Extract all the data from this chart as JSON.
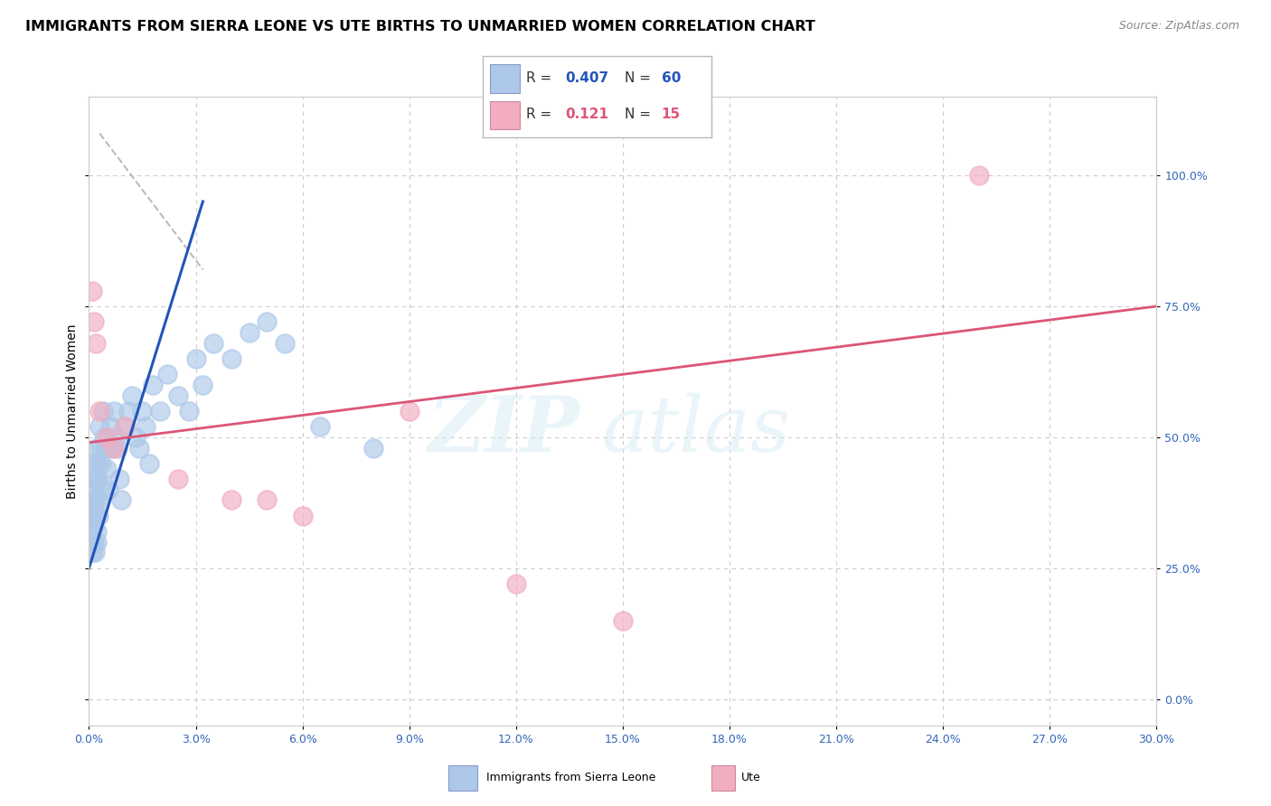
{
  "title": "IMMIGRANTS FROM SIERRA LEONE VS UTE BIRTHS TO UNMARRIED WOMEN CORRELATION CHART",
  "source": "Source: ZipAtlas.com",
  "ylabel": "Births to Unmarried Women",
  "xlim": [
    0.0,
    30.0
  ],
  "ylim": [
    -5.0,
    115.0
  ],
  "ytick_vals": [
    0,
    25,
    50,
    75,
    100
  ],
  "ytick_labels": [
    "0.0%",
    "25.0%",
    "50.0%",
    "75.0%",
    "100.0%"
  ],
  "xtick_vals": [
    0,
    3,
    6,
    9,
    12,
    15,
    18,
    21,
    24,
    27,
    30
  ],
  "xtick_labels": [
    "0.0%",
    "3.0%",
    "6.0%",
    "9.0%",
    "12.0%",
    "15.0%",
    "18.0%",
    "21.0%",
    "24.0%",
    "27.0%",
    "30.0%"
  ],
  "blue_color": "#adc8e8",
  "pink_color": "#f2adc0",
  "blue_line_color": "#2255bb",
  "pink_line_color": "#dd5577",
  "legend_r1": "0.407",
  "legend_n1": "60",
  "legend_r2": "0.121",
  "legend_n2": "15",
  "blue_x": [
    0.05,
    0.07,
    0.08,
    0.09,
    0.1,
    0.11,
    0.12,
    0.13,
    0.14,
    0.15,
    0.16,
    0.17,
    0.18,
    0.19,
    0.2,
    0.21,
    0.22,
    0.23,
    0.24,
    0.25,
    0.26,
    0.28,
    0.3,
    0.32,
    0.35,
    0.38,
    0.4,
    0.43,
    0.46,
    0.5,
    0.55,
    0.6,
    0.65,
    0.7,
    0.75,
    0.8,
    0.85,
    0.9,
    1.0,
    1.1,
    1.2,
    1.3,
    1.4,
    1.5,
    1.6,
    1.7,
    1.8,
    2.0,
    2.2,
    2.5,
    2.8,
    3.0,
    3.2,
    3.5,
    4.0,
    4.5,
    5.0,
    5.5,
    6.5,
    8.0
  ],
  "blue_y": [
    35,
    32,
    30,
    28,
    38,
    42,
    40,
    36,
    33,
    30,
    28,
    45,
    42,
    38,
    35,
    32,
    30,
    48,
    45,
    42,
    38,
    35,
    52,
    48,
    45,
    40,
    55,
    50,
    48,
    44,
    40,
    52,
    48,
    55,
    50,
    48,
    42,
    38,
    52,
    55,
    58,
    50,
    48,
    55,
    52,
    45,
    60,
    55,
    62,
    58,
    55,
    65,
    60,
    68,
    65,
    70,
    72,
    68,
    52,
    48
  ],
  "pink_x": [
    0.1,
    0.15,
    0.2,
    0.3,
    0.5,
    0.7,
    1.0,
    2.5,
    5.0,
    6.0,
    9.0,
    15.0,
    25.0,
    4.0,
    12.0
  ],
  "pink_y": [
    78,
    72,
    68,
    55,
    50,
    48,
    52,
    42,
    38,
    35,
    55,
    15,
    100,
    38,
    22
  ],
  "blue_trend_x0": 0.0,
  "blue_trend_y0": 25.0,
  "blue_trend_x1": 3.2,
  "blue_trend_y1": 95.0,
  "pink_trend_x0": 0.0,
  "pink_trend_y0": 49.0,
  "pink_trend_x1": 30.0,
  "pink_trend_y1": 75.0,
  "dash_x0": 0.3,
  "dash_y0": 108.0,
  "dash_x1": 3.2,
  "dash_y1": 82.0
}
